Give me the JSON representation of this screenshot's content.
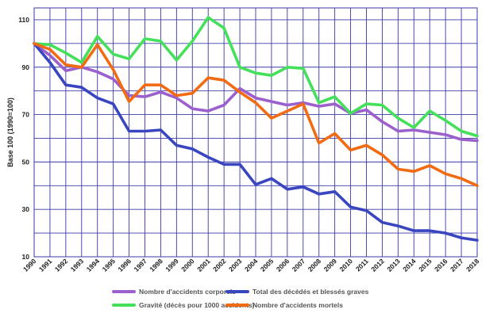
{
  "chart_data": {
    "type": "line",
    "ylabel": "Base 100 (1990=100)",
    "ylim": [
      10,
      115
    ],
    "yticks": [
      10,
      30,
      50,
      70,
      90,
      110
    ],
    "x": [
      "1990",
      "1991",
      "1992",
      "1993",
      "1994",
      "1995",
      "1996",
      "1997",
      "1998",
      "1999",
      "2000",
      "2001",
      "2002",
      "2003",
      "2004",
      "2005",
      "2006",
      "2007",
      "2008",
      "2009",
      "2010",
      "2011",
      "2012",
      "2013",
      "2014",
      "2015",
      "2016",
      "2017",
      "2018"
    ],
    "grid": true,
    "legend_position": "bottom",
    "series": [
      {
        "name": "Nombre d'accidents corporels",
        "color": "#9b5fce",
        "values": [
          100,
          95,
          88.5,
          90,
          88,
          85,
          78,
          77.5,
          79.5,
          77,
          72.5,
          71.5,
          74,
          81,
          77,
          75.5,
          74,
          75,
          73.5,
          74.5,
          70.5,
          72,
          67,
          63,
          63.5,
          62.5,
          61.5,
          59.5,
          59
        ]
      },
      {
        "name": "Total des décédés et blessés graves",
        "color": "#3a46c0",
        "values": [
          100,
          92,
          82.5,
          81.5,
          77,
          74.5,
          63,
          63,
          63.5,
          57,
          55.5,
          52,
          49,
          49,
          40.5,
          43,
          38.5,
          39.5,
          36.5,
          37.5,
          31,
          29.5,
          24.5,
          23,
          21,
          21,
          20,
          18,
          17
        ]
      },
      {
        "name": "Gravité (décès pour 1000 accidents)",
        "color": "#44e05a",
        "values": [
          100,
          99.5,
          96,
          92,
          103,
          95.5,
          93.5,
          102,
          101,
          93,
          101,
          111,
          106.5,
          90,
          87.5,
          86.5,
          90,
          89.5,
          75,
          77.5,
          70.5,
          74.5,
          74,
          68.5,
          64.5,
          71.5,
          67.5,
          63,
          61
        ]
      },
      {
        "name": "Nombre d'accidents mortels",
        "color": "#f26b12",
        "values": [
          100,
          97.5,
          91,
          90,
          99.5,
          89,
          75.5,
          82.5,
          82.5,
          78,
          79,
          85.5,
          84.5,
          79.5,
          75,
          68.5,
          71.5,
          74.5,
          58,
          62,
          55,
          57,
          53,
          47,
          46,
          48.5,
          45,
          43,
          40
        ]
      }
    ]
  }
}
